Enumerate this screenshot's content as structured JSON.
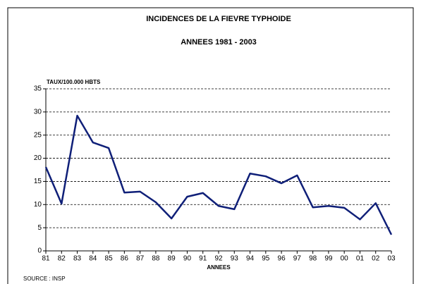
{
  "chart_data": {
    "type": "line",
    "title": "INCIDENCES DE LA FIEVRE TYPHOIDE",
    "subtitle": "ANNEES 1981 - 2003",
    "y_label": "TAUX/100.000 HBTS",
    "x_label": "ANNEES",
    "source": "SOURCE : INSP",
    "categories": [
      "81",
      "82",
      "83",
      "84",
      "85",
      "86",
      "87",
      "88",
      "89",
      "90",
      "91",
      "92",
      "93",
      "94",
      "95",
      "96",
      "97",
      "98",
      "99",
      "00",
      "01",
      "02",
      "03"
    ],
    "series": [
      {
        "name": "TAUX/100.000 HBTS",
        "color": "#0f1f78",
        "values": [
          18.1,
          10.2,
          29.2,
          23.4,
          22.2,
          12.6,
          12.8,
          10.5,
          7.0,
          11.7,
          12.5,
          9.7,
          9.0,
          16.7,
          16.1,
          14.6,
          16.3,
          9.4,
          9.7,
          9.3,
          6.8,
          10.3,
          3.5
        ]
      }
    ],
    "ylim": [
      0,
      35
    ],
    "yticks": [
      0,
      5,
      10,
      15,
      20,
      25,
      30,
      35
    ],
    "grid": true
  }
}
